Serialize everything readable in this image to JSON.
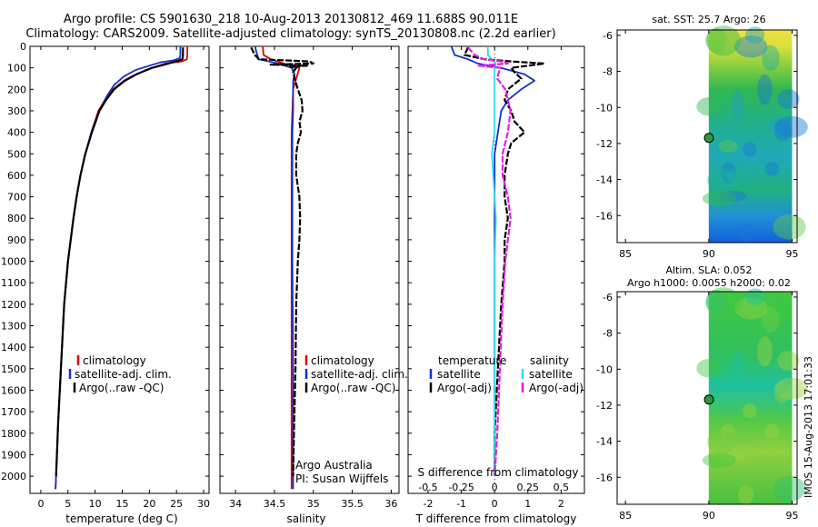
{
  "header": {
    "title_line1": "Argo profile: CS 5901630_218 10-Aug-2013 20130812_469 11.688S 90.011E",
    "title_line2": "Climatology: CARS2009. Satellite-adjusted climatology: synTS_20130808.nc (2.2d earlier)"
  },
  "credits": {
    "line1": "Argo Australia",
    "line2": "PI: Susan Wijffels",
    "side_stamp": "IMOS 15-Aug-2013 17:01:33"
  },
  "colors": {
    "climatology": "#e00000",
    "satellite": "#1030d0",
    "argo": "#000000",
    "sat_salinity": "#30d8e8",
    "argo_salinity": "#e020e0"
  },
  "chart_data": [
    {
      "type": "line",
      "panel": "temperature",
      "xlabel": "temperature (deg C)",
      "ylabel": "",
      "xlim": [
        -2,
        31
      ],
      "ylim": [
        2080,
        0
      ],
      "xticks": [
        0,
        5,
        10,
        15,
        20,
        25,
        30
      ],
      "yticks": [
        0,
        100,
        200,
        300,
        400,
        500,
        600,
        700,
        800,
        900,
        1000,
        1100,
        1200,
        1300,
        1400,
        1500,
        1600,
        1700,
        1800,
        1900,
        2000
      ],
      "legend": [
        "climatology",
        "satellite-adj. clim.",
        "Argo(..raw -QC)"
      ],
      "legend_position": "center",
      "series": [
        {
          "name": "climatology",
          "color": "#e00000",
          "depth": [
            0,
            40,
            60,
            70,
            80,
            100,
            130,
            160,
            200,
            250,
            300,
            400,
            500,
            600,
            700,
            800,
            1000,
            1200,
            1500,
            1750,
            2000,
            2060
          ],
          "values": [
            27.0,
            27.0,
            26.9,
            26.0,
            23.0,
            20.5,
            17.5,
            15.3,
            13.3,
            11.8,
            10.6,
            9.3,
            8.2,
            7.3,
            6.6,
            6.0,
            5.0,
            4.3,
            3.7,
            3.2,
            2.8,
            2.7
          ]
        },
        {
          "name": "satellite-adj. clim.",
          "color": "#1030d0",
          "depth": [
            0,
            40,
            55,
            65,
            75,
            90,
            110,
            140,
            180,
            230,
            280,
            330,
            400,
            500,
            600,
            700,
            800,
            1000,
            1200,
            1500,
            1750,
            2000,
            2060
          ],
          "values": [
            25.7,
            25.7,
            25.6,
            24.5,
            22.0,
            20.0,
            17.5,
            15.3,
            13.5,
            12.2,
            11.2,
            10.3,
            9.3,
            8.2,
            7.3,
            6.6,
            6.0,
            5.0,
            4.3,
            3.7,
            3.2,
            2.8,
            2.7
          ]
        },
        {
          "name": "Argo(..raw -QC)",
          "color": "#000000",
          "depth": [
            5,
            40,
            60,
            68,
            72,
            80,
            90,
            100,
            115,
            130,
            160,
            200,
            250,
            300,
            400,
            500,
            600,
            700,
            800,
            1000,
            1200,
            1500,
            1750,
            2000
          ],
          "values": [
            26.2,
            26.2,
            26.1,
            25.2,
            24.5,
            23.5,
            22.0,
            20.5,
            19.0,
            17.6,
            15.5,
            13.5,
            12.0,
            10.8,
            9.4,
            8.2,
            7.3,
            6.6,
            6.0,
            5.0,
            4.3,
            3.7,
            3.2,
            2.8
          ]
        }
      ]
    },
    {
      "type": "line",
      "panel": "salinity",
      "xlabel": "salinity",
      "ylabel": "",
      "xlim": [
        33.8,
        36.1
      ],
      "ylim": [
        2080,
        0
      ],
      "xticks": [
        34,
        34.5,
        35,
        35.5,
        36
      ],
      "legend": [
        "climatology",
        "satellite-adj. clim.",
        "Argo(..raw -QC)"
      ],
      "legend_position": "center",
      "series": [
        {
          "name": "climatology",
          "color": "#e00000",
          "depth": [
            0,
            40,
            60,
            80,
            100,
            150,
            200,
            300,
            400,
            500,
            700,
            1000,
            1500,
            2000,
            2060
          ],
          "values": [
            34.35,
            34.36,
            34.45,
            34.62,
            34.82,
            34.78,
            34.74,
            34.73,
            34.72,
            34.72,
            34.72,
            34.72,
            34.72,
            34.72,
            34.72
          ]
        },
        {
          "name": "satellite-adj. clim.",
          "color": "#1030d0",
          "depth": [
            0,
            40,
            60,
            80,
            100,
            130,
            160,
            200,
            300,
            400,
            500,
            700,
            1000,
            1500,
            2000,
            2060
          ],
          "values": [
            34.25,
            34.28,
            34.3,
            34.55,
            34.72,
            34.76,
            34.74,
            34.74,
            34.74,
            34.73,
            34.73,
            34.73,
            34.73,
            34.74,
            34.74,
            34.74
          ]
        },
        {
          "name": "Argo(..raw -QC)",
          "color": "#000000",
          "depth": [
            5,
            40,
            60,
            70,
            80,
            85,
            90,
            95,
            100,
            120,
            150,
            200,
            250,
            300,
            350,
            400,
            450,
            500,
            600,
            700,
            800,
            900,
            1000,
            1200,
            1500,
            1800,
            2000
          ],
          "values": [
            34.2,
            34.25,
            34.3,
            34.95,
            35.0,
            34.45,
            34.92,
            34.7,
            34.78,
            34.74,
            34.76,
            34.8,
            34.85,
            34.86,
            34.82,
            34.84,
            34.8,
            34.78,
            34.78,
            34.82,
            34.83,
            34.82,
            34.8,
            34.78,
            34.77,
            34.75,
            34.74
          ]
        }
      ]
    },
    {
      "type": "line",
      "panel": "difference",
      "xlabel": "T difference from climatology",
      "x2label": "S difference from climatology",
      "xlim": [
        -2.6,
        2.7
      ],
      "ylim": [
        2080,
        0
      ],
      "xticks": [
        -2,
        -1,
        0,
        1,
        2
      ],
      "x2ticks": [
        -0.5,
        -0.25,
        0,
        0.25,
        0.5
      ],
      "legend": [
        "temperature",
        "satellite",
        "Argo(-adj)",
        "salinity",
        "satellite",
        "Argo(-adj)"
      ],
      "legend_position": "center",
      "series": [
        {
          "name": "satellite",
          "group": "temperature",
          "color": "#1030d0",
          "depth": [
            0,
            40,
            60,
            80,
            100,
            130,
            160,
            200,
            250,
            300,
            400,
            500,
            600,
            700,
            800,
            1000,
            1200,
            1500,
            2000
          ],
          "values": [
            -1.3,
            -1.2,
            -0.8,
            -0.5,
            0.2,
            0.9,
            1.2,
            0.8,
            0.4,
            0.2,
            0.1,
            0.0,
            0.0,
            0.0,
            0.0,
            0.0,
            0.0,
            0.0,
            0.0
          ]
        },
        {
          "name": "Argo(-adj)",
          "group": "temperature",
          "color": "#000000",
          "depth": [
            5,
            40,
            60,
            70,
            80,
            90,
            100,
            120,
            150,
            200,
            250,
            300,
            350,
            400,
            450,
            500,
            600,
            700,
            800,
            900,
            1000,
            1200,
            1500,
            1800,
            2000
          ],
          "values": [
            -0.8,
            -0.9,
            -0.3,
            0.5,
            1.5,
            1.0,
            0.5,
            0.6,
            0.8,
            0.4,
            0.3,
            0.5,
            0.6,
            0.9,
            0.5,
            0.4,
            0.3,
            0.3,
            0.4,
            0.3,
            0.3,
            0.2,
            0.1,
            0.0,
            0.0
          ]
        },
        {
          "name": "satellite",
          "group": "salinity",
          "color": "#30d8e8",
          "depth": [
            0,
            40,
            60,
            80,
            100,
            150,
            200,
            300,
            400,
            500,
            600,
            700,
            800,
            1000,
            1200,
            1500,
            2000
          ],
          "values": [
            -0.05,
            -0.05,
            -0.02,
            0.01,
            0.0,
            0.0,
            0.0,
            0.0,
            0.0,
            -0.02,
            -0.01,
            0.0,
            0.01,
            0.0,
            0.0,
            0.0,
            0.0
          ]
        },
        {
          "name": "Argo(-adj)",
          "group": "salinity",
          "color": "#e020e0",
          "depth": [
            5,
            40,
            60,
            70,
            80,
            90,
            100,
            150,
            200,
            250,
            300,
            400,
            500,
            600,
            700,
            800,
            900,
            1000,
            1200,
            1500,
            1800,
            2000
          ],
          "values": [
            -0.2,
            -0.15,
            -0.08,
            0.05,
            0.1,
            -0.12,
            0.04,
            0.02,
            0.08,
            0.1,
            0.12,
            0.1,
            0.06,
            0.06,
            0.1,
            0.12,
            0.1,
            0.08,
            0.06,
            0.04,
            0.02,
            0.0
          ]
        }
      ]
    },
    {
      "type": "heatmap",
      "panel": "sat-sst-map",
      "title": "sat. SST: 25.7 Argo: 26",
      "xlim": [
        84.5,
        95.3
      ],
      "ylim": [
        -17.5,
        -5.7
      ],
      "xticks": [
        85,
        90,
        95
      ],
      "yticks": [
        -6,
        -8,
        -10,
        -12,
        -14,
        -16
      ],
      "data_extent": {
        "lon": [
          90,
          95
        ],
        "lat": [
          -17.5,
          -5.7
        ]
      },
      "marker": {
        "lon": 90.011,
        "lat": -11.688
      }
    },
    {
      "type": "heatmap",
      "panel": "altim-sla-map",
      "title_line1": "Altim. SLA: 0.052",
      "title_line2": "Argo h1000: 0.0055 h2000: 0.02",
      "xlim": [
        84.5,
        95.3
      ],
      "ylim": [
        -17.5,
        -5.7
      ],
      "xticks": [
        85,
        90,
        95
      ],
      "yticks": [
        -6,
        -8,
        -10,
        -12,
        -14,
        -16
      ],
      "data_extent": {
        "lon": [
          90,
          95
        ],
        "lat": [
          -17.5,
          -5.7
        ]
      },
      "marker": {
        "lon": 90.011,
        "lat": -11.688
      }
    }
  ]
}
